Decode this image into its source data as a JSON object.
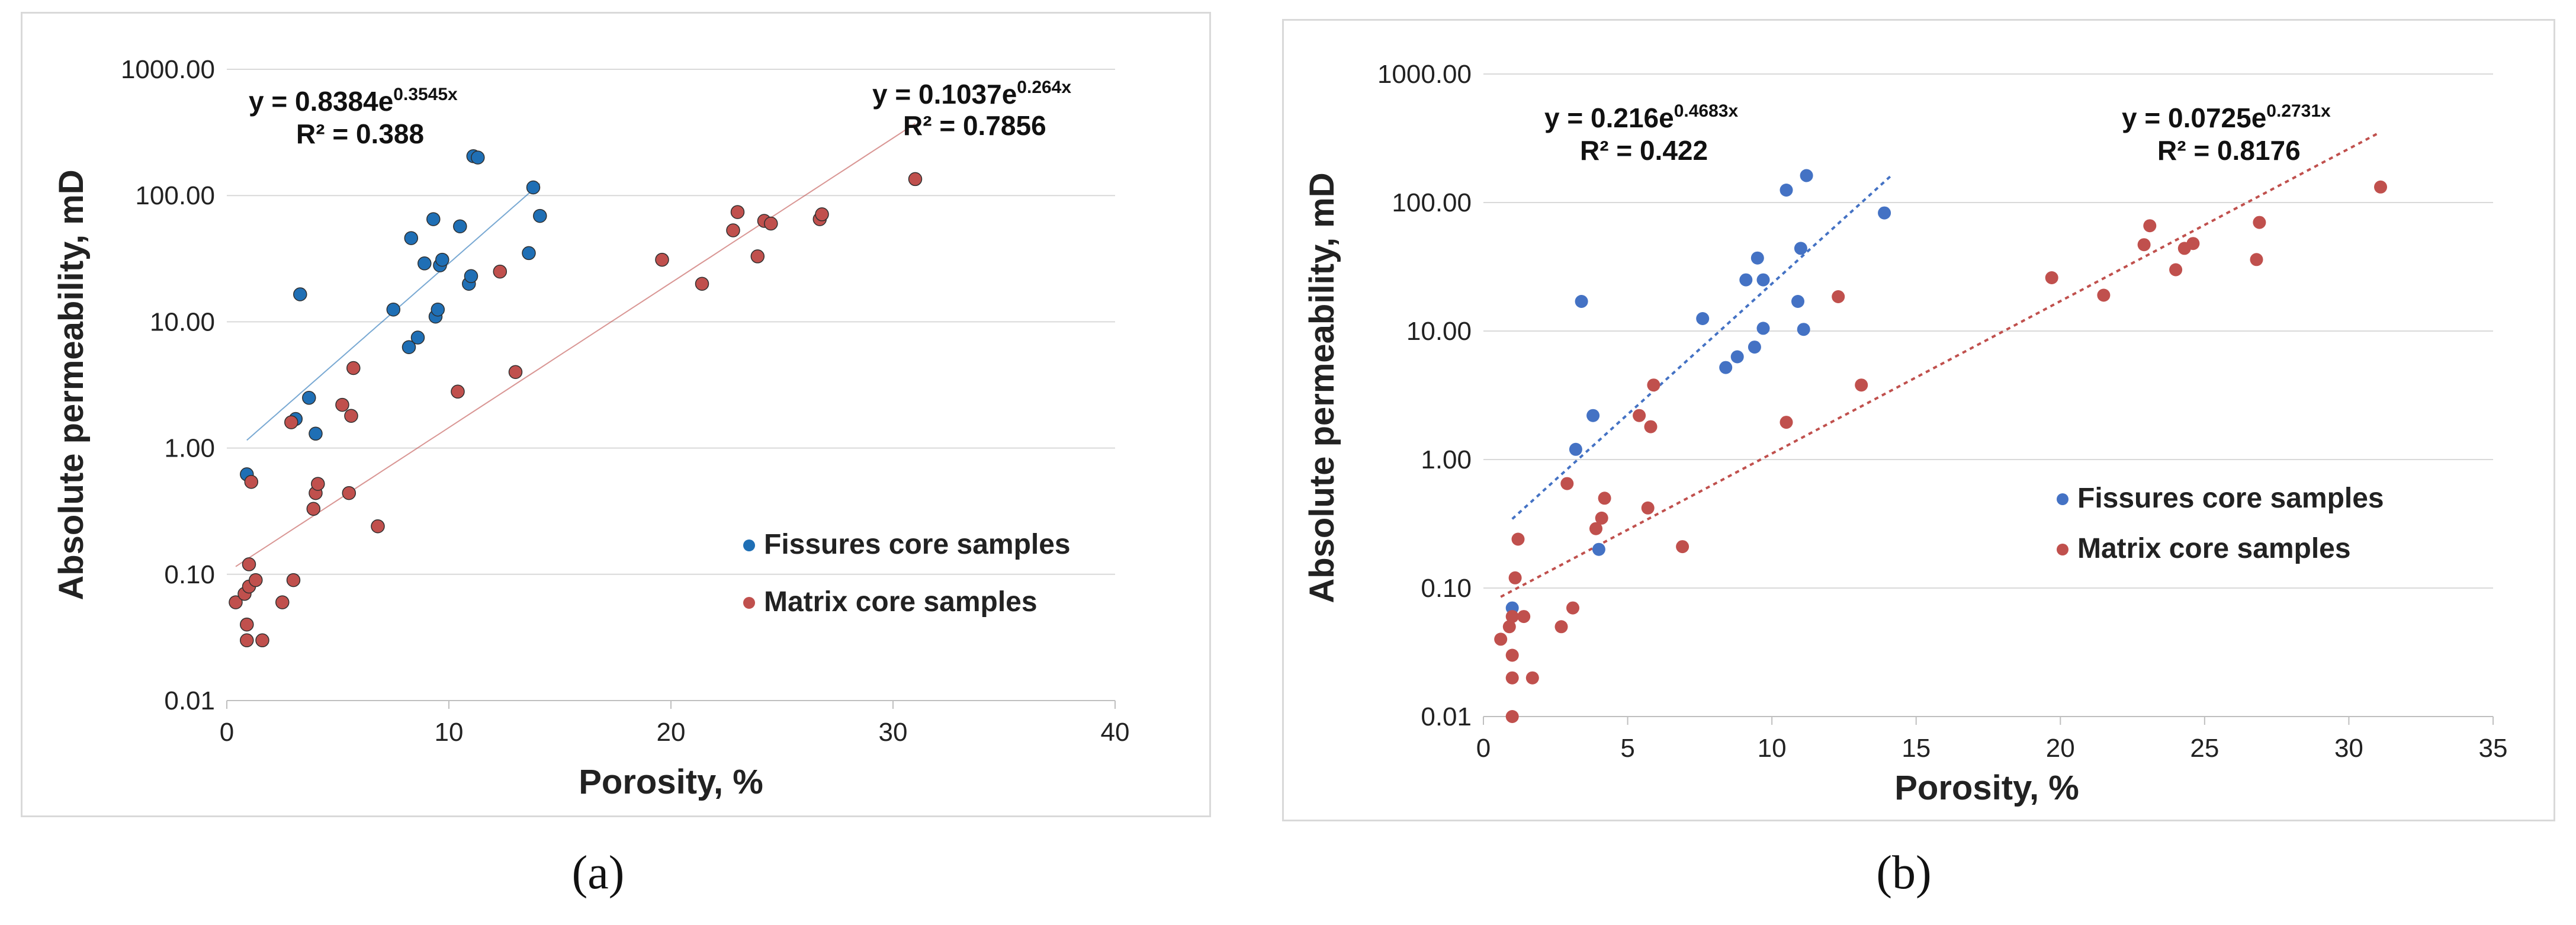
{
  "chart_data": [
    {
      "panel": "(a)",
      "type": "scatter",
      "y_scale": "log",
      "xlabel": "Porosity, %",
      "ylabel": "Absolute permeability, mD",
      "xlim": [
        0,
        40
      ],
      "ylim": [
        0.01,
        1000
      ],
      "x_ticks": [
        "0",
        "10",
        "20",
        "30",
        "40"
      ],
      "y_ticks": [
        "0.01",
        "0.10",
        "1.00",
        "10.00",
        "100.00",
        "1000.00"
      ],
      "grid": "horizontal",
      "legend_position": "lower-right",
      "series": [
        {
          "name": "Fissures core samples",
          "color": "#1f6fb5",
          "points": [
            {
              "x": 0.9,
              "y": 0.62
            },
            {
              "x": 3.1,
              "y": 1.7
            },
            {
              "x": 3.3,
              "y": 16.5
            },
            {
              "x": 3.7,
              "y": 2.5
            },
            {
              "x": 4.0,
              "y": 1.3
            },
            {
              "x": 7.5,
              "y": 12.5
            },
            {
              "x": 8.2,
              "y": 6.3
            },
            {
              "x": 8.3,
              "y": 46
            },
            {
              "x": 8.6,
              "y": 7.5
            },
            {
              "x": 8.9,
              "y": 29
            },
            {
              "x": 9.3,
              "y": 65
            },
            {
              "x": 9.4,
              "y": 11
            },
            {
              "x": 9.5,
              "y": 12.5
            },
            {
              "x": 9.6,
              "y": 28
            },
            {
              "x": 9.7,
              "y": 31
            },
            {
              "x": 10.5,
              "y": 57
            },
            {
              "x": 10.9,
              "y": 20
            },
            {
              "x": 11.0,
              "y": 23
            },
            {
              "x": 11.1,
              "y": 205
            },
            {
              "x": 11.3,
              "y": 200
            },
            {
              "x": 13.6,
              "y": 35
            },
            {
              "x": 13.8,
              "y": 116
            },
            {
              "x": 14.1,
              "y": 69
            }
          ],
          "trendline": {
            "equation": "y = 0.8384e",
            "exponent": "0.3545x",
            "r2": "R² = 0.388",
            "a": 0.8384,
            "b": 0.3545,
            "x_range": [
              0.9,
              14.1
            ]
          }
        },
        {
          "name": "Matrix core samples",
          "color": "#c0504d",
          "points": [
            {
              "x": 0.4,
              "y": 0.06
            },
            {
              "x": 0.8,
              "y": 0.07
            },
            {
              "x": 0.9,
              "y": 0.03
            },
            {
              "x": 0.9,
              "y": 0.04
            },
            {
              "x": 1.0,
              "y": 0.12
            },
            {
              "x": 1.0,
              "y": 0.08
            },
            {
              "x": 1.1,
              "y": 0.54
            },
            {
              "x": 1.3,
              "y": 0.09
            },
            {
              "x": 1.6,
              "y": 0.03
            },
            {
              "x": 2.5,
              "y": 0.06
            },
            {
              "x": 2.9,
              "y": 1.6
            },
            {
              "x": 3.0,
              "y": 0.09
            },
            {
              "x": 3.9,
              "y": 0.33
            },
            {
              "x": 4.0,
              "y": 0.44
            },
            {
              "x": 4.1,
              "y": 0.52
            },
            {
              "x": 5.2,
              "y": 2.2
            },
            {
              "x": 5.5,
              "y": 0.44
            },
            {
              "x": 5.6,
              "y": 1.8
            },
            {
              "x": 5.7,
              "y": 4.3
            },
            {
              "x": 6.8,
              "y": 0.24
            },
            {
              "x": 10.4,
              "y": 2.8
            },
            {
              "x": 12.3,
              "y": 25
            },
            {
              "x": 13.0,
              "y": 4.0
            },
            {
              "x": 19.6,
              "y": 31
            },
            {
              "x": 21.4,
              "y": 20
            },
            {
              "x": 22.8,
              "y": 53
            },
            {
              "x": 23.0,
              "y": 74
            },
            {
              "x": 23.9,
              "y": 33
            },
            {
              "x": 24.2,
              "y": 63
            },
            {
              "x": 24.5,
              "y": 60
            },
            {
              "x": 26.7,
              "y": 65
            },
            {
              "x": 26.8,
              "y": 71
            },
            {
              "x": 31.0,
              "y": 135
            }
          ],
          "trendline": {
            "equation": "y = 0.1037e",
            "exponent": "0.264x",
            "r2": "R² = 0.7856",
            "a": 0.1037,
            "b": 0.264,
            "x_range": [
              0.4,
              31.0
            ]
          }
        }
      ]
    },
    {
      "panel": "(b)",
      "type": "scatter",
      "y_scale": "log",
      "xlabel": "Porosity, %",
      "ylabel": "Absolute permeability, mD",
      "xlim": [
        0,
        35
      ],
      "ylim": [
        0.01,
        1000
      ],
      "x_ticks": [
        "0",
        "5",
        "10",
        "15",
        "20",
        "25",
        "30",
        "35"
      ],
      "y_ticks": [
        "0.01",
        "0.10",
        "1.00",
        "10.00",
        "100.00",
        "1000.00"
      ],
      "grid": "horizontal",
      "legend_position": "middle-right",
      "series": [
        {
          "name": "Fissures core samples",
          "color": "#4472c4",
          "points": [
            {
              "x": 1.0,
              "y": 0.07
            },
            {
              "x": 3.2,
              "y": 1.2
            },
            {
              "x": 3.4,
              "y": 17
            },
            {
              "x": 3.8,
              "y": 2.2
            },
            {
              "x": 4.0,
              "y": 0.2
            },
            {
              "x": 7.6,
              "y": 12.5
            },
            {
              "x": 8.4,
              "y": 5.2
            },
            {
              "x": 8.8,
              "y": 6.3
            },
            {
              "x": 9.1,
              "y": 25
            },
            {
              "x": 9.4,
              "y": 7.5
            },
            {
              "x": 9.5,
              "y": 37
            },
            {
              "x": 9.7,
              "y": 10.5
            },
            {
              "x": 9.7,
              "y": 25
            },
            {
              "x": 10.5,
              "y": 125
            },
            {
              "x": 10.9,
              "y": 17
            },
            {
              "x": 11.0,
              "y": 44
            },
            {
              "x": 11.1,
              "y": 10.3
            },
            {
              "x": 11.2,
              "y": 162
            },
            {
              "x": 13.9,
              "y": 83
            }
          ],
          "trendline": {
            "equation": "y = 0.216e",
            "exponent": "0.4683x",
            "r2": "R² = 0.422",
            "a": 0.216,
            "b": 0.4683,
            "x_range": [
              1.0,
              14.2
            ]
          }
        },
        {
          "name": "Matrix core samples",
          "color": "#c0504d",
          "points": [
            {
              "x": 0.6,
              "y": 0.04
            },
            {
              "x": 0.9,
              "y": 0.05
            },
            {
              "x": 1.0,
              "y": 0.06
            },
            {
              "x": 1.0,
              "y": 0.03
            },
            {
              "x": 1.0,
              "y": 0.02
            },
            {
              "x": 1.0,
              "y": 0.01
            },
            {
              "x": 1.1,
              "y": 0.12
            },
            {
              "x": 1.2,
              "y": 0.24
            },
            {
              "x": 1.4,
              "y": 0.06
            },
            {
              "x": 1.7,
              "y": 0.02
            },
            {
              "x": 2.7,
              "y": 0.05
            },
            {
              "x": 2.9,
              "y": 0.65
            },
            {
              "x": 3.1,
              "y": 0.07
            },
            {
              "x": 3.9,
              "y": 0.29
            },
            {
              "x": 4.1,
              "y": 0.35
            },
            {
              "x": 4.2,
              "y": 0.5
            },
            {
              "x": 5.4,
              "y": 2.2
            },
            {
              "x": 5.7,
              "y": 0.42
            },
            {
              "x": 5.8,
              "y": 1.8
            },
            {
              "x": 5.9,
              "y": 3.8
            },
            {
              "x": 6.9,
              "y": 0.21
            },
            {
              "x": 10.5,
              "y": 1.95
            },
            {
              "x": 12.3,
              "y": 18.5
            },
            {
              "x": 13.1,
              "y": 3.8
            },
            {
              "x": 19.7,
              "y": 26
            },
            {
              "x": 21.5,
              "y": 19
            },
            {
              "x": 22.9,
              "y": 47
            },
            {
              "x": 23.1,
              "y": 66
            },
            {
              "x": 24.0,
              "y": 30
            },
            {
              "x": 24.3,
              "y": 44
            },
            {
              "x": 24.6,
              "y": 48
            },
            {
              "x": 26.8,
              "y": 36
            },
            {
              "x": 26.9,
              "y": 70
            },
            {
              "x": 31.1,
              "y": 132
            }
          ],
          "trendline": {
            "equation": "y = 0.0725e",
            "exponent": "0.2731x",
            "r2": "R² = 0.8176",
            "a": 0.0725,
            "b": 0.2731,
            "x_range": [
              0.6,
              31.0
            ]
          }
        }
      ]
    }
  ]
}
